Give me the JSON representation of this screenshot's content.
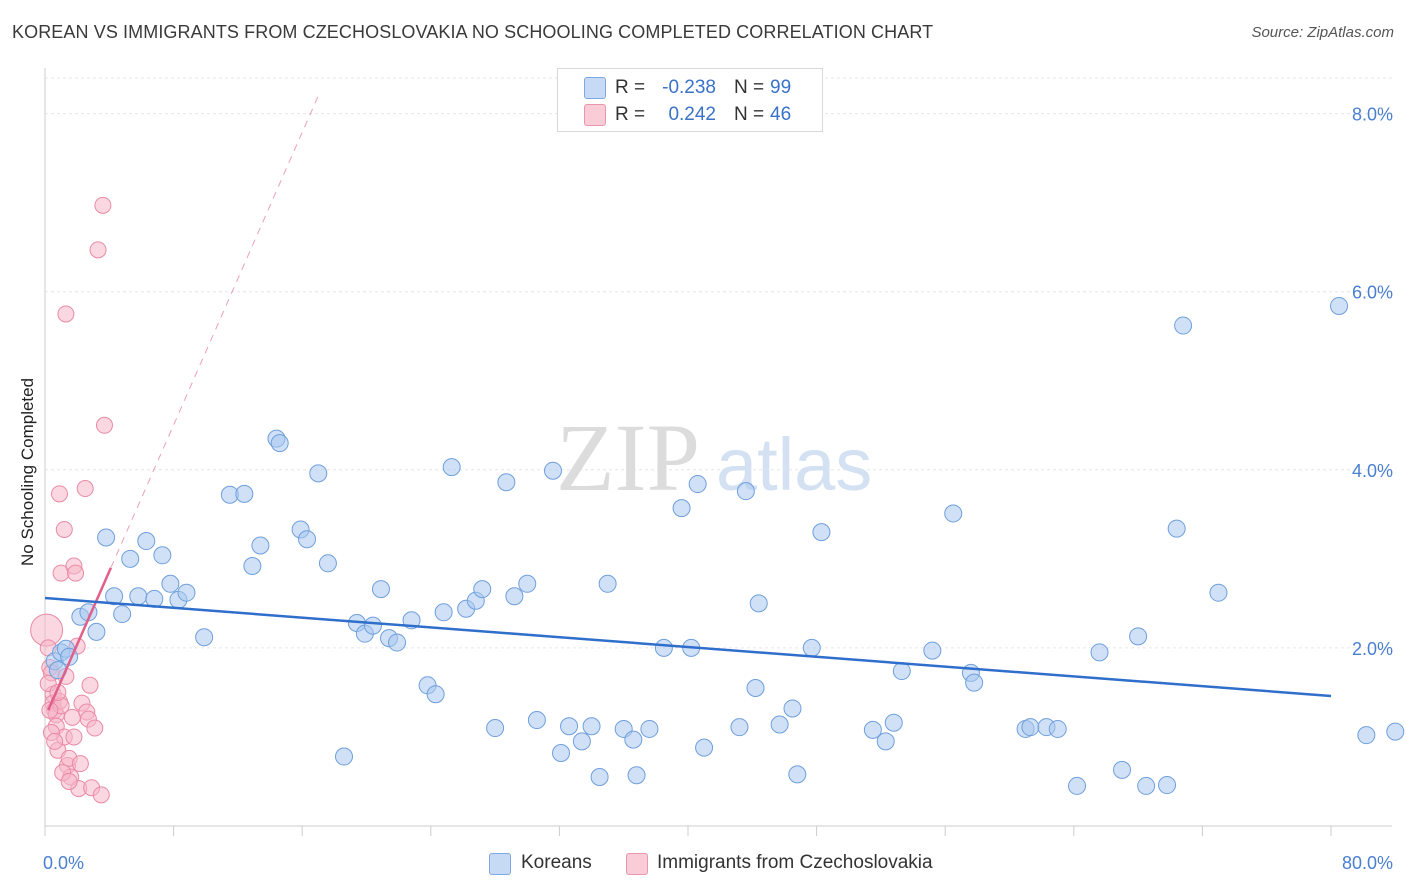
{
  "title": "KOREAN VS IMMIGRANTS FROM CZECHOSLOVAKIA NO SCHOOLING COMPLETED CORRELATION CHART",
  "source": "Source: ZipAtlas.com",
  "watermark": {
    "zip": "ZIP",
    "atlas": "atlas"
  },
  "legend_top": [
    {
      "r_label": "R =",
      "r_value": "-0.238",
      "n_label": "N =",
      "n_value": "99",
      "color": "#a9c8f0"
    },
    {
      "r_label": "R =",
      "r_value": "0.242",
      "n_label": "N =",
      "n_value": "46",
      "color": "#f6b7c8"
    }
  ],
  "legend_bottom": [
    {
      "label": "Koreans",
      "color": "#a9c8f0"
    },
    {
      "label": "Immigrants from Czechoslovakia",
      "color": "#f6b7c8"
    }
  ],
  "colors": {
    "koreans_fill": "#a9c8f0",
    "koreans_stroke": "#6f9fdc",
    "koreans_line": "#2f6fcb",
    "czech_fill": "#f6b7c8",
    "czech_stroke": "#ea8aa6",
    "czech_line": "#e0608a",
    "axis_text": "#4a7fcf",
    "grid": "#e6e6e6"
  },
  "chart_data": {
    "type": "scatter",
    "title": "KOREAN VS IMMIGRANTS FROM CZECHOSLOVAKIA NO SCHOOLING COMPLETED CORRELATION CHART",
    "xlabel": "",
    "ylabel": "No Schooling Completed",
    "xlim": [
      0,
      80
    ],
    "ylim": [
      0,
      8.4
    ],
    "x_tick_labels": [
      "0.0%",
      "80.0%"
    ],
    "y_ticks": [
      2,
      4,
      6,
      8
    ],
    "y_tick_labels": [
      "2.0%",
      "4.0%",
      "6.0%",
      "8.0%"
    ],
    "grid": "horizontal dashed",
    "legend": "top-center",
    "series": [
      {
        "name": "Koreans",
        "r": -0.238,
        "n": 99,
        "trend": {
          "x": [
            0,
            80
          ],
          "y": [
            2.56,
            1.46
          ]
        },
        "points": [
          [
            0.6,
            1.85
          ],
          [
            0.8,
            1.75
          ],
          [
            1.0,
            1.95
          ],
          [
            1.3,
            1.99
          ],
          [
            1.5,
            1.9
          ],
          [
            2.2,
            2.35
          ],
          [
            2.7,
            2.4
          ],
          [
            3.2,
            2.18
          ],
          [
            3.8,
            3.24
          ],
          [
            4.3,
            2.58
          ],
          [
            4.8,
            2.38
          ],
          [
            5.3,
            3.0
          ],
          [
            5.8,
            2.58
          ],
          [
            6.3,
            3.2
          ],
          [
            6.8,
            2.55
          ],
          [
            7.3,
            3.04
          ],
          [
            7.8,
            2.72
          ],
          [
            8.3,
            2.54
          ],
          [
            8.8,
            2.62
          ],
          [
            9.9,
            2.12
          ],
          [
            11.5,
            3.72
          ],
          [
            12.4,
            3.73
          ],
          [
            12.9,
            2.92
          ],
          [
            13.4,
            3.15
          ],
          [
            14.4,
            4.35
          ],
          [
            14.6,
            4.3
          ],
          [
            15.9,
            3.33
          ],
          [
            16.3,
            3.22
          ],
          [
            17.0,
            3.96
          ],
          [
            17.6,
            2.95
          ],
          [
            18.6,
            0.78
          ],
          [
            19.4,
            2.28
          ],
          [
            19.9,
            2.16
          ],
          [
            20.4,
            2.25
          ],
          [
            20.9,
            2.66
          ],
          [
            21.4,
            2.11
          ],
          [
            21.9,
            2.06
          ],
          [
            22.8,
            2.31
          ],
          [
            23.8,
            1.58
          ],
          [
            24.3,
            1.48
          ],
          [
            24.8,
            2.4
          ],
          [
            25.3,
            4.03
          ],
          [
            26.2,
            2.44
          ],
          [
            26.8,
            2.53
          ],
          [
            27.2,
            2.66
          ],
          [
            28.0,
            1.1
          ],
          [
            28.7,
            3.86
          ],
          [
            29.2,
            2.58
          ],
          [
            30.0,
            2.72
          ],
          [
            30.6,
            1.19
          ],
          [
            31.6,
            3.99
          ],
          [
            32.1,
            0.82
          ],
          [
            32.6,
            1.12
          ],
          [
            33.4,
            0.95
          ],
          [
            34.0,
            1.12
          ],
          [
            34.5,
            0.55
          ],
          [
            35.0,
            2.72
          ],
          [
            36.0,
            1.09
          ],
          [
            36.6,
            0.97
          ],
          [
            36.8,
            0.57
          ],
          [
            37.6,
            1.09
          ],
          [
            38.5,
            2.0
          ],
          [
            39.6,
            3.57
          ],
          [
            40.2,
            2.0
          ],
          [
            40.6,
            3.84
          ],
          [
            41.0,
            0.88
          ],
          [
            43.2,
            1.11
          ],
          [
            43.6,
            3.76
          ],
          [
            44.2,
            1.55
          ],
          [
            44.4,
            2.5
          ],
          [
            45.7,
            1.14
          ],
          [
            46.5,
            1.32
          ],
          [
            46.8,
            0.58
          ],
          [
            47.7,
            2.0
          ],
          [
            48.3,
            3.3
          ],
          [
            51.5,
            1.08
          ],
          [
            52.3,
            0.95
          ],
          [
            52.8,
            1.16
          ],
          [
            53.3,
            1.74
          ],
          [
            55.2,
            1.97
          ],
          [
            56.5,
            3.51
          ],
          [
            57.6,
            1.72
          ],
          [
            57.8,
            1.61
          ],
          [
            61.0,
            1.09
          ],
          [
            61.3,
            1.11
          ],
          [
            62.3,
            1.11
          ],
          [
            63.0,
            1.09
          ],
          [
            64.2,
            0.45
          ],
          [
            65.6,
            1.95
          ],
          [
            67.0,
            0.63
          ],
          [
            68.0,
            2.13
          ],
          [
            68.5,
            0.45
          ],
          [
            69.8,
            0.46
          ],
          [
            70.4,
            3.34
          ],
          [
            70.8,
            5.62
          ],
          [
            73.0,
            2.62
          ],
          [
            80.5,
            5.84
          ],
          [
            82.2,
            1.02
          ],
          [
            84.0,
            1.06
          ]
        ]
      },
      {
        "name": "Immigrants from Czechoslovakia",
        "r": 0.242,
        "n": 46,
        "trend": {
          "x": [
            0.2,
            4.1
          ],
          "y": [
            1.3,
            2.9
          ]
        },
        "trend_extension": {
          "x": [
            0.2,
            17.0
          ],
          "y": [
            1.3,
            8.2
          ]
        },
        "points": [
          [
            0.1,
            2.2
          ],
          [
            0.2,
            2.0
          ],
          [
            0.3,
            1.78
          ],
          [
            0.4,
            1.72
          ],
          [
            0.5,
            1.48
          ],
          [
            0.5,
            1.38
          ],
          [
            0.6,
            1.3
          ],
          [
            0.7,
            1.25
          ],
          [
            0.7,
            1.12
          ],
          [
            0.8,
            0.85
          ],
          [
            0.9,
            1.4
          ],
          [
            0.9,
            3.73
          ],
          [
            1.0,
            2.84
          ],
          [
            1.0,
            1.35
          ],
          [
            1.2,
            3.33
          ],
          [
            1.2,
            1.0
          ],
          [
            1.3,
            1.68
          ],
          [
            1.3,
            5.75
          ],
          [
            1.4,
            0.68
          ],
          [
            1.5,
            0.76
          ],
          [
            1.6,
            0.55
          ],
          [
            1.7,
            1.22
          ],
          [
            1.8,
            2.92
          ],
          [
            1.9,
            2.84
          ],
          [
            2.0,
            2.02
          ],
          [
            2.1,
            0.42
          ],
          [
            2.2,
            0.7
          ],
          [
            2.3,
            1.38
          ],
          [
            2.5,
            3.79
          ],
          [
            2.6,
            1.28
          ],
          [
            2.7,
            1.2
          ],
          [
            2.8,
            1.58
          ],
          [
            2.9,
            0.43
          ],
          [
            3.1,
            1.1
          ],
          [
            3.3,
            6.47
          ],
          [
            3.5,
            0.35
          ],
          [
            3.6,
            6.97
          ],
          [
            3.7,
            4.5
          ],
          [
            0.2,
            1.6
          ],
          [
            0.4,
            1.05
          ],
          [
            0.6,
            0.95
          ],
          [
            1.1,
            0.6
          ],
          [
            1.5,
            0.5
          ],
          [
            1.8,
            1.0
          ],
          [
            0.3,
            1.3
          ],
          [
            0.8,
            1.5
          ]
        ]
      }
    ]
  }
}
